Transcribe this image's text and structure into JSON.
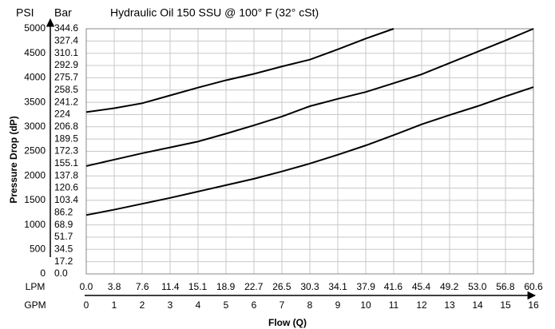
{
  "chart_data": {
    "type": "line",
    "title": "Hydraulic Oil 150 SSU @ 100° F (32° cSt)",
    "y_header": "PSI",
    "y2_header": "Bar",
    "y_label": "Pressure Drop (dP)",
    "x_label": "Flow (Q)",
    "x_row_label": "GPM",
    "x2_row_label": "LPM",
    "x": [
      0,
      1,
      2,
      3,
      4,
      5,
      6,
      7,
      8,
      9,
      10,
      11,
      12,
      13,
      14,
      15,
      16
    ],
    "xlim": [
      0,
      16
    ],
    "xticks": [
      0,
      1,
      2,
      3,
      4,
      5,
      6,
      7,
      8,
      9,
      10,
      11,
      12,
      13,
      14,
      15,
      16
    ],
    "x2lim": [
      0,
      60.6
    ],
    "x2ticks": [
      {
        "value": 0,
        "label": "0.0"
      },
      3.8,
      7.6,
      11.4,
      15.1,
      18.9,
      22.7,
      26.5,
      30.3,
      34.1,
      37.9,
      41.6,
      45.4,
      49.2,
      {
        "value": 53,
        "label": "53.0"
      },
      56.8,
      60.6
    ],
    "ylim": [
      0,
      5000
    ],
    "yticks": [
      0,
      500,
      1000,
      1500,
      2000,
      2500,
      3000,
      3500,
      4000,
      4500,
      5000
    ],
    "y2lim": [
      0,
      344.6
    ],
    "y2ticks": [
      {
        "value": 0,
        "label": "0.0"
      },
      17.2,
      34.5,
      51.7,
      68.9,
      86.2,
      103.4,
      120.6,
      137.8,
      155.1,
      172.3,
      189.5,
      206.8,
      224,
      241.2,
      258.5,
      275.7,
      292.9,
      310.1,
      327.4,
      344.6
    ],
    "grid": true,
    "series": [
      {
        "color": "#000000",
        "values": [
          3300,
          3380,
          3480,
          3640,
          3800,
          3950,
          4080,
          4230,
          4370,
          4580,
          4800,
          5000,
          null,
          null,
          null,
          null,
          null
        ]
      },
      {
        "color": "#000000",
        "values": [
          2200,
          2330,
          2460,
          2580,
          2700,
          2860,
          3030,
          3210,
          3420,
          3570,
          3710,
          3890,
          4070,
          4300,
          4530,
          4760,
          5000
        ]
      },
      {
        "color": "#000000",
        "values": [
          1200,
          1310,
          1430,
          1550,
          1680,
          1810,
          1940,
          2090,
          2250,
          2430,
          2620,
          2830,
          3050,
          3240,
          3420,
          3620,
          3810
        ]
      }
    ]
  }
}
